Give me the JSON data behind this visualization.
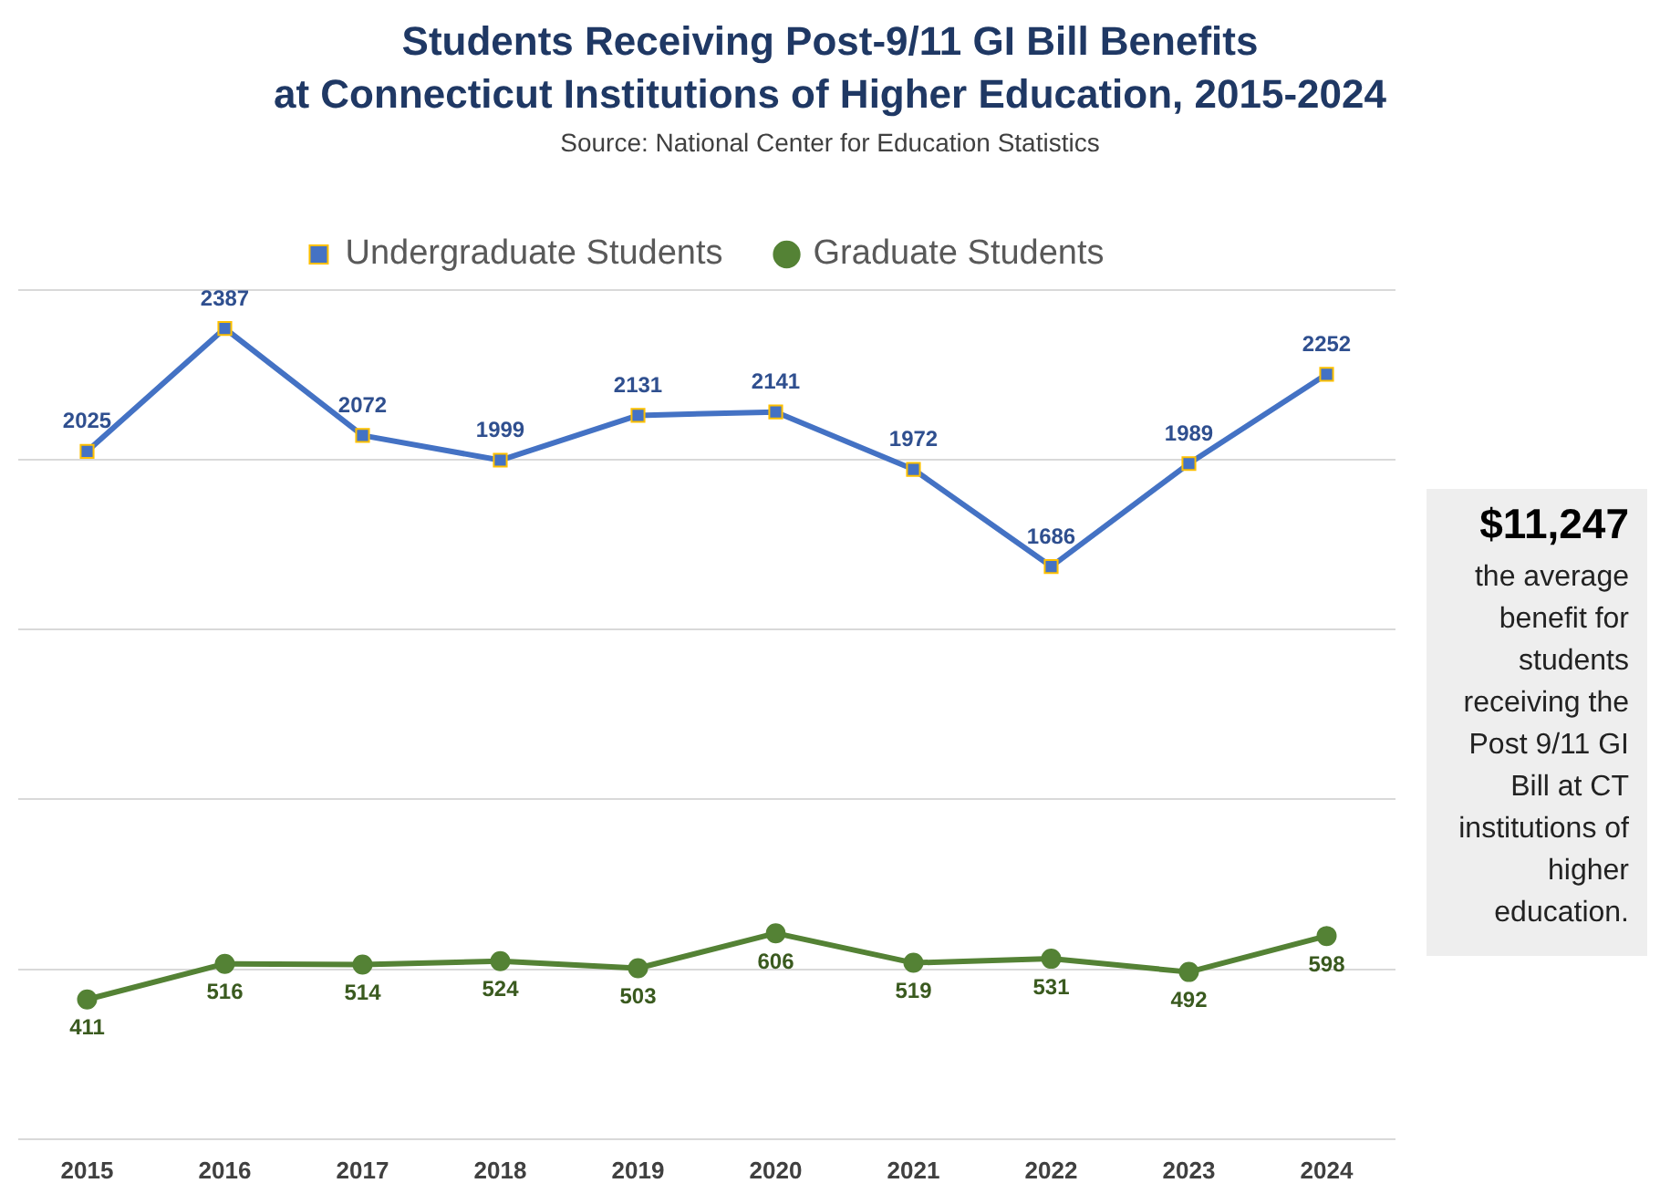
{
  "chart_data": {
    "type": "line",
    "title": "Students Receiving Post-9/11 GI Bill Benefits\nat Connecticut Institutions of Higher Education, 2015-2024",
    "annotations": [
      "Source: National Center for Education Statistics",
      "$11,247",
      "the average benefit for students receiving the Post 9/11 GI Bill at CT institutions of higher education."
    ],
    "categories": [
      "2015",
      "2016",
      "2017",
      "2018",
      "2019",
      "2020",
      "2021",
      "2022",
      "2023",
      "2024"
    ],
    "series": [
      {
        "name": "Undergraduate Students",
        "color": "#4472c4",
        "marker": "square",
        "values": [
          2025,
          2387,
          2072,
          1999,
          2131,
          2141,
          1972,
          1686,
          1989,
          2252
        ]
      },
      {
        "name": "Graduate Students",
        "color": "#548235",
        "marker": "circle",
        "values": [
          411,
          516,
          514,
          524,
          503,
          606,
          519,
          531,
          492,
          598
        ]
      }
    ],
    "ylim": [
      0,
      2500
    ],
    "yticks": [
      {
        "value": 0,
        "label": null
      },
      {
        "value": 500,
        "label": null
      },
      {
        "value": 1000,
        "label": null
      },
      {
        "value": 1500,
        "label": null
      },
      {
        "value": 2000,
        "label": null
      },
      {
        "value": 2500,
        "label": null
      }
    ],
    "grid": "y",
    "legend": "top",
    "tick_labels": "x",
    "data_labels": true,
    "line_style": "solid"
  }
}
